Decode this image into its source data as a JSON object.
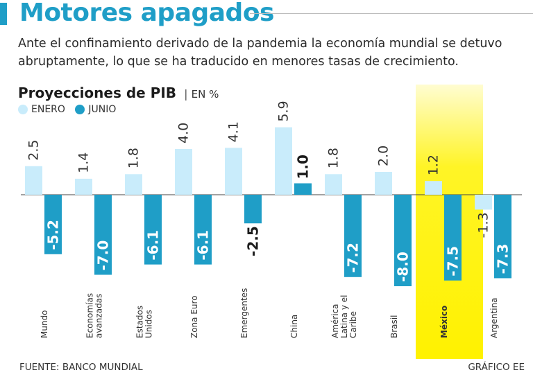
{
  "header": {
    "title": "Motores apagados",
    "subtitle_lines": [
      "Ante el confinamiento derivado de la pandemia la economía mundial se detuvo",
      "abruptamente, lo que se ha traducido en menores tasas de crecimiento."
    ]
  },
  "colors": {
    "brand": "#1f9ec7",
    "enero": "#c9ecfb",
    "junio": "#1f9ec7",
    "highlight": "#fff200",
    "text": "#1b1b1b"
  },
  "chart_data": {
    "type": "bar",
    "title": "Proyecciones de PIB",
    "separator": "|",
    "unit": "EN %",
    "categories": [
      "Mundo",
      "Economías avanzadas",
      "Estados Unidos",
      "Zona Euro",
      "Emergentes",
      "China",
      "América Latina y el Caribe",
      "Brasil",
      "México",
      "Argentina"
    ],
    "category_lines": [
      [
        "Mundo"
      ],
      [
        "Economías",
        "avanzadas"
      ],
      [
        "Estados",
        "Unidos"
      ],
      [
        "Zona Euro"
      ],
      [
        "Emergentes"
      ],
      [
        "China"
      ],
      [
        "América",
        "Latina y el",
        "Caribe"
      ],
      [
        "Brasil"
      ],
      [
        "México"
      ],
      [
        "Argentina"
      ]
    ],
    "series": [
      {
        "name": "ENERO",
        "values": [
          2.5,
          1.4,
          1.8,
          4.0,
          4.1,
          5.9,
          1.8,
          2.0,
          1.2,
          -1.3
        ],
        "labels": [
          "2.5",
          "1.4",
          "1.8",
          "4.0",
          "4.1",
          "5.9",
          "1.8",
          "2.0",
          "1.2",
          "-1.3"
        ]
      },
      {
        "name": "JUNIO",
        "values": [
          -5.2,
          -7.0,
          -6.1,
          -6.1,
          -2.5,
          1.0,
          -7.2,
          -8.0,
          -7.5,
          -7.3
        ],
        "labels": [
          "-5.2",
          "-7.0",
          "-6.1",
          "-6.1",
          "-2.5",
          "1.0",
          "-7.2",
          "-8.0",
          "-7.5",
          "-7.3"
        ]
      }
    ],
    "highlight_category": "México",
    "ylim": [
      -8.0,
      5.9
    ],
    "grid": false,
    "legend": "top-left"
  },
  "footer": {
    "source": "FUENTE:  BANCO MUNDIAL",
    "credit": "GRÁFICO EE"
  }
}
